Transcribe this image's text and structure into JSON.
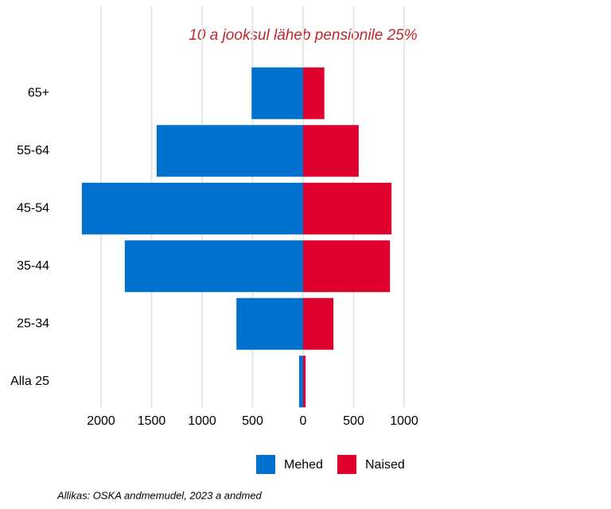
{
  "chart_data": {
    "type": "pyramid",
    "title": "10 a jooksul läheb pensionile 25%",
    "source": "Allikas: OSKA andmemudel, 2023 a andmed",
    "categories": [
      "65+",
      "55-64",
      "45-54",
      "35-44",
      "25-34",
      "Alla 25"
    ],
    "series": [
      {
        "name": "Mehed",
        "color": "#0072ce",
        "values": [
          -510,
          -1450,
          -2190,
          -1765,
          -660,
          -40
        ]
      },
      {
        "name": "Naised",
        "color": "#e0002e",
        "values": [
          210,
          550,
          875,
          860,
          300,
          25
        ]
      }
    ],
    "xlim": [
      -2300,
      1100
    ],
    "xticks": [
      {
        "value": -2000,
        "label": "2000"
      },
      {
        "value": -1500,
        "label": "1500"
      },
      {
        "value": -1000,
        "label": "1000"
      },
      {
        "value": -500,
        "label": "500"
      },
      0,
      500,
      1000
    ],
    "grid": true,
    "legend": "bottom"
  }
}
